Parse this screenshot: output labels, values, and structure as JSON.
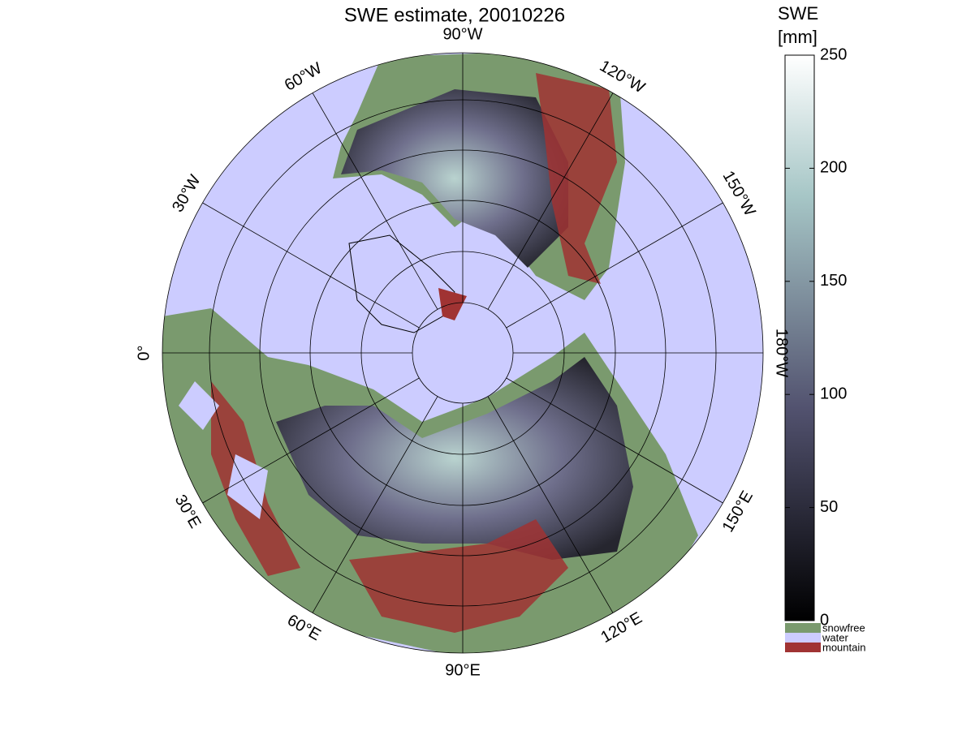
{
  "map": {
    "title": "SWE estimate, 20010226",
    "longitude_labels": [
      "90°W",
      "120°W",
      "150°W",
      "180°W",
      "150°E",
      "120°E",
      "90°E",
      "60°E",
      "30°E",
      "0°",
      "30°W",
      "60°W"
    ],
    "colorbar": {
      "label": [
        "SWE",
        "[mm]"
      ],
      "lim": [
        0,
        250
      ],
      "ticks": [
        0,
        50,
        100,
        150,
        200,
        250
      ]
    },
    "legend": [
      {
        "name": "snowfree",
        "color": "#7a9a6e"
      },
      {
        "name": "water",
        "color": "#ccccff"
      },
      {
        "name": "mountain",
        "color": "#a03333"
      }
    ]
  }
}
